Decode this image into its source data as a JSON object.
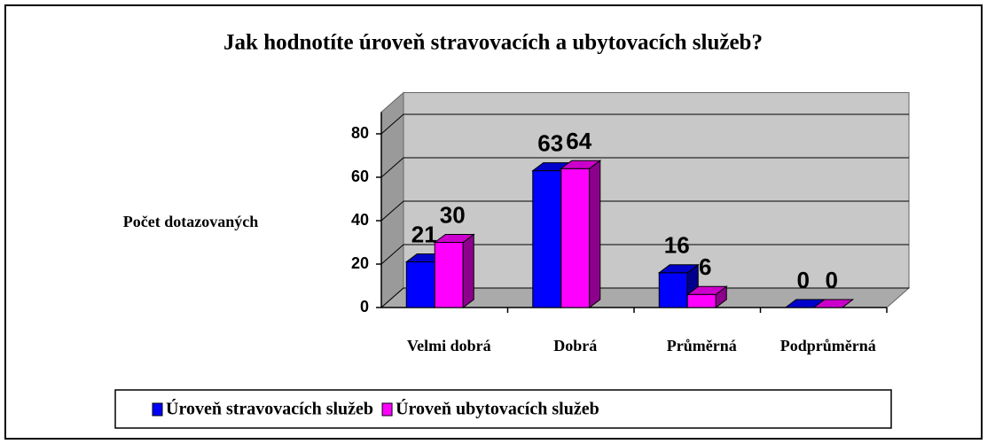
{
  "chart_data": {
    "type": "bar3d",
    "title": "Jak hodnotíte úroveň stravovacích a ubytovacích služeb?",
    "y_label": "Počet dotazovaných",
    "categories": [
      "Velmi dobrá",
      "Dobrá",
      "Průměrná",
      "Podprůměrná"
    ],
    "series": [
      {
        "name": "Úroveň stravovacích služeb",
        "color": "#0000ff",
        "values": [
          21,
          63,
          16,
          0
        ]
      },
      {
        "name": "Úroveň ubytovacích služeb",
        "color": "#ff00ff",
        "values": [
          30,
          64,
          6,
          0
        ]
      }
    ],
    "ylim": [
      0,
      90
    ],
    "yticks": [
      0,
      20,
      40,
      60,
      80
    ],
    "grid": true,
    "legend": "bottom"
  }
}
